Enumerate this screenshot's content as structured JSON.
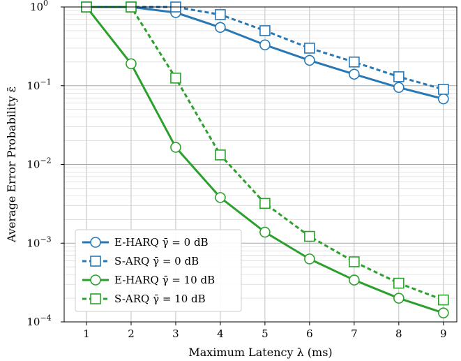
{
  "chart_data": {
    "type": "line",
    "xlabel": "Maximum Latency λ (ms)",
    "ylabel": "Average Error Probability ε̄",
    "x": [
      1,
      2,
      3,
      4,
      5,
      6,
      7,
      8,
      9
    ],
    "xlim": [
      0.5,
      9.3
    ],
    "ylim": [
      0.0001,
      1
    ],
    "yscale": "log",
    "x_tick_labels": [
      "1",
      "2",
      "3",
      "4",
      "5",
      "6",
      "7",
      "8",
      "9"
    ],
    "y_ticks": [
      {
        "value": 1,
        "label": "10^0"
      },
      {
        "value": 0.1,
        "label": "10^-1"
      },
      {
        "value": 0.01,
        "label": "10^-2"
      },
      {
        "value": 0.001,
        "label": "10^-3"
      },
      {
        "value": 0.0001,
        "label": "10^-4"
      }
    ],
    "grid": true,
    "legend_position": "bottom-left",
    "series": [
      {
        "name": "E-HARQ γ̄ = 0 dB",
        "color": "#2878b5",
        "linestyle": "solid",
        "marker": "circle",
        "values": [
          1.0,
          1.0,
          0.85,
          0.55,
          0.33,
          0.21,
          0.14,
          0.095,
          0.068
        ]
      },
      {
        "name": "S-ARQ γ̄ = 0 dB",
        "color": "#2878b5",
        "linestyle": "dashed",
        "marker": "square",
        "values": [
          1.0,
          1.0,
          1.0,
          0.8,
          0.5,
          0.3,
          0.2,
          0.13,
          0.09
        ]
      },
      {
        "name": "E-HARQ γ̄ = 10 dB",
        "color": "#2ca02c",
        "linestyle": "solid",
        "marker": "circle",
        "values": [
          1.0,
          0.19,
          0.0165,
          0.0038,
          0.00138,
          0.00063,
          0.00034,
          0.0002,
          0.00013
        ]
      },
      {
        "name": "S-ARQ γ̄ = 10 dB",
        "color": "#2ca02c",
        "linestyle": "dashed",
        "marker": "square",
        "values": [
          1.0,
          1.0,
          0.125,
          0.0132,
          0.0032,
          0.00122,
          0.00058,
          0.00031,
          0.00019
        ]
      }
    ]
  }
}
